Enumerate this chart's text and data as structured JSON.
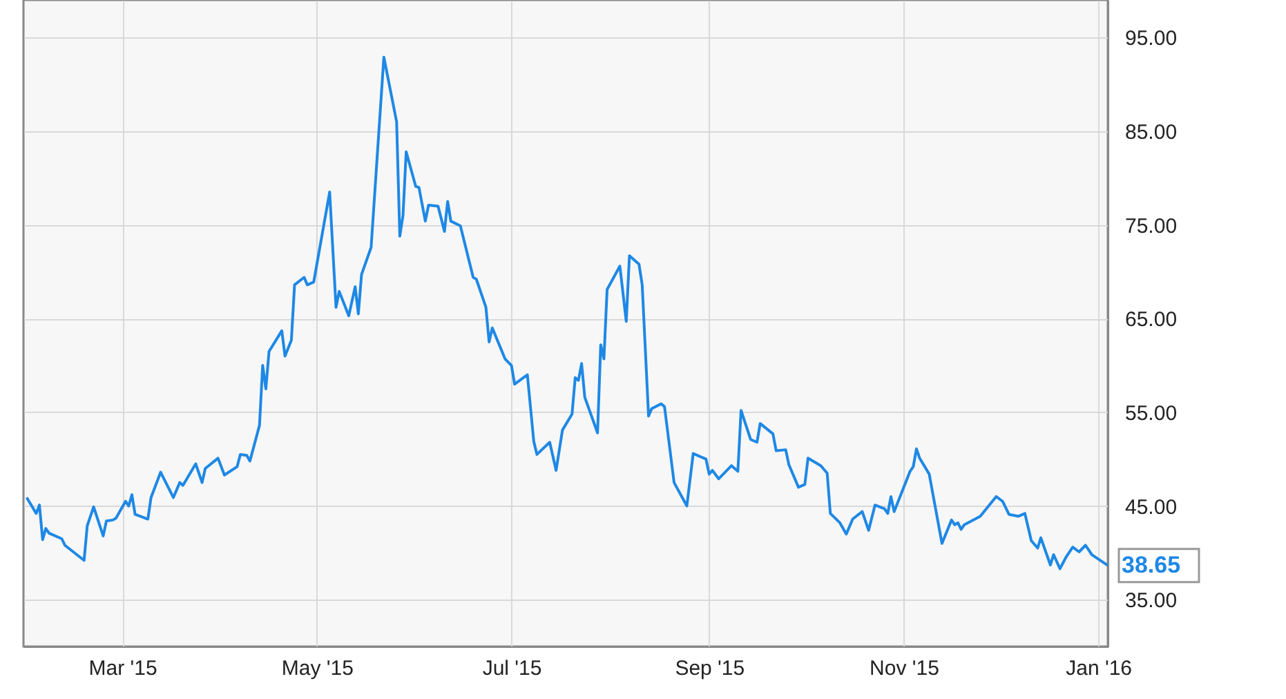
{
  "chart_data": {
    "type": "line",
    "x": [
      "2015-01-30",
      "2015-02-02",
      "2015-02-03",
      "2015-02-04",
      "2015-02-05",
      "2015-02-06",
      "2015-02-10",
      "2015-02-11",
      "2015-02-17",
      "2015-02-18",
      "2015-02-20",
      "2015-02-23",
      "2015-02-24",
      "2015-02-26",
      "2015-02-27",
      "2015-03-02",
      "2015-03-03",
      "2015-03-04",
      "2015-03-05",
      "2015-03-09",
      "2015-03-10",
      "2015-03-13",
      "2015-03-17",
      "2015-03-19",
      "2015-03-20",
      "2015-03-24",
      "2015-03-26",
      "2015-03-27",
      "2015-03-31",
      "2015-04-02",
      "2015-04-06",
      "2015-04-07",
      "2015-04-09",
      "2015-04-10",
      "2015-04-13",
      "2015-04-14",
      "2015-04-15",
      "2015-04-16",
      "2015-04-20",
      "2015-04-21",
      "2015-04-23",
      "2015-04-24",
      "2015-04-27",
      "2015-04-28",
      "2015-04-30",
      "2015-05-05",
      "2015-05-07",
      "2015-05-08",
      "2015-05-11",
      "2015-05-13",
      "2015-05-14",
      "2015-05-15",
      "2015-05-18",
      "2015-05-22",
      "2015-05-26",
      "2015-05-27",
      "2015-05-28",
      "2015-05-29",
      "2015-06-01",
      "2015-06-02",
      "2015-06-04",
      "2015-06-05",
      "2015-06-08",
      "2015-06-10",
      "2015-06-11",
      "2015-06-12",
      "2015-06-15",
      "2015-06-19",
      "2015-06-20",
      "2015-06-23",
      "2015-06-24",
      "2015-06-25",
      "2015-06-29",
      "2015-07-01",
      "2015-07-02",
      "2015-07-06",
      "2015-07-08",
      "2015-07-09",
      "2015-07-13",
      "2015-07-15",
      "2015-07-17",
      "2015-07-20",
      "2015-07-21",
      "2015-07-22",
      "2015-07-23",
      "2015-07-24",
      "2015-07-28",
      "2015-07-29",
      "2015-07-30",
      "2015-07-31",
      "2015-08-04",
      "2015-08-06",
      "2015-08-07",
      "2015-08-10",
      "2015-08-11",
      "2015-08-13",
      "2015-08-14",
      "2015-08-17",
      "2015-08-18",
      "2015-08-21",
      "2015-08-25",
      "2015-08-27",
      "2015-08-31",
      "2015-09-01",
      "2015-09-02",
      "2015-09-04",
      "2015-09-08",
      "2015-09-10",
      "2015-09-11",
      "2015-09-14",
      "2015-09-16",
      "2015-09-17",
      "2015-09-21",
      "2015-09-22",
      "2015-09-25",
      "2015-09-26",
      "2015-09-29",
      "2015-10-01",
      "2015-10-02",
      "2015-10-06",
      "2015-10-08",
      "2015-10-09",
      "2015-10-12",
      "2015-10-14",
      "2015-10-16",
      "2015-10-19",
      "2015-10-21",
      "2015-10-23",
      "2015-10-26",
      "2015-10-27",
      "2015-10-28",
      "2015-10-29",
      "2015-11-03",
      "2015-11-04",
      "2015-11-05",
      "2015-11-06",
      "2015-11-09",
      "2015-11-13",
      "2015-11-16",
      "2015-11-17",
      "2015-11-18",
      "2015-11-19",
      "2015-11-20",
      "2015-11-25",
      "2015-11-30",
      "2015-12-02",
      "2015-12-04",
      "2015-12-07",
      "2015-12-09",
      "2015-12-11",
      "2015-12-13",
      "2015-12-14",
      "2015-12-17",
      "2015-12-18",
      "2015-12-20",
      "2015-12-22",
      "2015-12-24",
      "2015-12-26",
      "2015-12-28",
      "2015-12-30",
      "2016-01-04"
    ],
    "series": [
      {
        "color": "#1e88e5",
        "values": [
          45.9,
          44.2,
          45.1,
          41.4,
          42.6,
          42.1,
          41.5,
          40.8,
          39.2,
          42.9,
          44.9,
          41.8,
          43.4,
          43.5,
          43.7,
          45.5,
          45.0,
          46.2,
          44.1,
          43.6,
          45.9,
          48.6,
          45.9,
          47.5,
          47.2,
          49.5,
          47.5,
          49.0,
          50.1,
          48.3,
          49.2,
          50.5,
          50.4,
          49.8,
          53.6,
          60.0,
          57.5,
          61.5,
          63.7,
          61.0,
          62.7,
          68.6,
          69.4,
          68.6,
          68.9,
          78.5,
          66.2,
          67.9,
          65.3,
          68.4,
          65.5,
          69.7,
          72.6,
          92.9,
          86.0,
          73.8,
          76.0,
          82.8,
          79.1,
          79.0,
          75.4,
          77.1,
          77.0,
          74.3,
          77.5,
          75.4,
          74.9,
          69.4,
          69.2,
          66.2,
          62.5,
          64.0,
          60.7,
          60.0,
          58.0,
          59.0,
          51.9,
          50.5,
          51.8,
          48.8,
          53.1,
          54.8,
          58.7,
          58.4,
          60.2,
          56.6,
          52.8,
          62.2,
          60.7,
          68.1,
          70.6,
          64.7,
          71.7,
          70.8,
          68.6,
          54.6,
          55.4,
          55.9,
          55.6,
          47.5,
          45.0,
          50.6,
          50.0,
          48.4,
          48.8,
          47.9,
          49.3,
          48.7,
          55.2,
          52.1,
          51.8,
          53.8,
          52.7,
          50.9,
          51.0,
          49.4,
          47.0,
          47.3,
          50.1,
          49.3,
          48.5,
          44.2,
          43.2,
          42.0,
          43.6,
          44.4,
          42.4,
          45.1,
          44.7,
          44.2,
          46.0,
          44.4,
          48.7,
          49.2,
          51.1,
          50.1,
          48.4,
          41.0,
          43.5,
          43.0,
          43.2,
          42.5,
          43.0,
          43.9,
          46.0,
          45.5,
          44.1,
          43.9,
          44.2,
          41.3,
          40.5,
          41.6,
          38.7,
          39.8,
          38.3,
          39.6,
          40.6,
          40.1,
          40.8,
          39.8,
          38.65
        ]
      }
    ],
    "xlim": [
      "2015-01-29",
      "2016-01-04"
    ],
    "xticks": [
      {
        "value": "2015-03-01",
        "label": "Mar '15"
      },
      {
        "value": "2015-05-01",
        "label": "May '15"
      },
      {
        "value": "2015-07-01",
        "label": "Jul '15"
      },
      {
        "value": "2015-09-01",
        "label": "Sep '15"
      },
      {
        "value": "2015-11-01",
        "label": "Nov '15"
      },
      {
        "value": "2016-01-01",
        "label": "Jan '16"
      }
    ],
    "ylim": [
      30,
      99
    ],
    "yticks": [
      {
        "value": 35,
        "label": "35.00"
      },
      {
        "value": 45,
        "label": "45.00"
      },
      {
        "value": 55,
        "label": "55.00"
      },
      {
        "value": 65,
        "label": "65.00"
      },
      {
        "value": 75,
        "label": "75.00"
      },
      {
        "value": 85,
        "label": "85.00"
      },
      {
        "value": 95,
        "label": "95.00"
      }
    ],
    "grid": true,
    "annotations": [
      {
        "text": "38.65",
        "x": "2016-01-04",
        "y": 38.65
      }
    ]
  }
}
